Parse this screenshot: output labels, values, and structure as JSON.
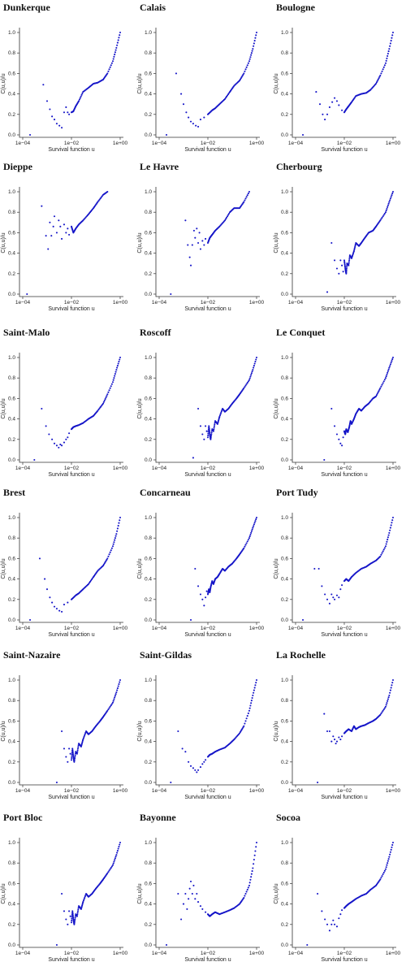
{
  "figure": {
    "background": "#ffffff",
    "marker_color": "#1515c8",
    "xlabel": "Survival function u",
    "ylabel": "C(u,u)/u",
    "x_ticks": [
      "1e−04",
      "1e−02",
      "1e+00"
    ],
    "y_ticks": [
      "0.0",
      "0.2",
      "0.4",
      "0.6",
      "0.8",
      "1.0"
    ],
    "x_scale": "log",
    "xlim": [
      0.0001,
      1
    ],
    "ylim": [
      0,
      1
    ]
  },
  "chart_data": [
    {
      "type": "scatter",
      "title": "Dunkerque",
      "xlabel": "Survival function u",
      "ylabel": "C(u,u)/u",
      "x_scale": "log",
      "xlim": [
        0.0001,
        1
      ],
      "ylim": [
        0,
        1
      ],
      "x": [
        0.0002,
        0.0007,
        0.001,
        0.0013,
        0.0016,
        0.002,
        0.0025,
        0.0032,
        0.004,
        0.005,
        0.006,
        0.007,
        0.008,
        0.01,
        0.012,
        0.015,
        0.02,
        0.03,
        0.05,
        0.08,
        0.12,
        0.2,
        0.3,
        0.5,
        0.7,
        1
      ],
      "y": [
        0.0,
        0.49,
        0.33,
        0.25,
        0.18,
        0.15,
        0.11,
        0.09,
        0.07,
        0.22,
        0.27,
        0.22,
        0.2,
        0.22,
        0.23,
        0.28,
        0.33,
        0.42,
        0.46,
        0.5,
        0.51,
        0.54,
        0.6,
        0.72,
        0.85,
        1.0
      ]
    },
    {
      "type": "scatter",
      "title": "Calais",
      "xlabel": "Survival function u",
      "ylabel": "C(u,u)/u",
      "x_scale": "log",
      "xlim": [
        0.0001,
        1
      ],
      "ylim": [
        0,
        1
      ],
      "x": [
        0.0002,
        0.0005,
        0.0008,
        0.001,
        0.0013,
        0.0016,
        0.002,
        0.0025,
        0.0032,
        0.004,
        0.005,
        0.007,
        0.01,
        0.015,
        0.02,
        0.03,
        0.05,
        0.08,
        0.12,
        0.2,
        0.3,
        0.5,
        0.7,
        1
      ],
      "y": [
        0.0,
        0.6,
        0.4,
        0.3,
        0.22,
        0.17,
        0.13,
        0.11,
        0.09,
        0.08,
        0.15,
        0.17,
        0.2,
        0.24,
        0.26,
        0.3,
        0.35,
        0.42,
        0.48,
        0.53,
        0.6,
        0.72,
        0.84,
        1.0
      ]
    },
    {
      "type": "scatter",
      "title": "Boulogne",
      "xlabel": "Survival function u",
      "ylabel": "C(u,u)/u",
      "x_scale": "log",
      "xlim": [
        0.0001,
        1
      ],
      "ylim": [
        0,
        1
      ],
      "x": [
        0.0002,
        0.0007,
        0.001,
        0.0013,
        0.0016,
        0.002,
        0.0025,
        0.0032,
        0.004,
        0.005,
        0.006,
        0.008,
        0.01,
        0.012,
        0.015,
        0.02,
        0.03,
        0.05,
        0.08,
        0.12,
        0.2,
        0.3,
        0.5,
        0.7,
        1
      ],
      "y": [
        0.0,
        0.42,
        0.3,
        0.2,
        0.15,
        0.2,
        0.27,
        0.32,
        0.36,
        0.33,
        0.29,
        0.24,
        0.22,
        0.25,
        0.28,
        0.32,
        0.38,
        0.4,
        0.41,
        0.44,
        0.5,
        0.58,
        0.7,
        0.84,
        1.0
      ]
    },
    {
      "type": "scatter",
      "title": "Dieppe",
      "xlabel": "Survival function u",
      "ylabel": "C(u,u)/u",
      "x_scale": "log",
      "xlim": [
        0.0001,
        1
      ],
      "ylim": [
        0,
        1
      ],
      "x": [
        0.00015,
        0.0006,
        0.0009,
        0.0011,
        0.0013,
        0.0015,
        0.0018,
        0.002,
        0.0025,
        0.003,
        0.0035,
        0.004,
        0.005,
        0.006,
        0.007,
        0.008,
        0.01,
        0.012,
        0.015,
        0.02,
        0.03,
        0.05,
        0.08,
        0.12,
        0.2,
        0.3
      ],
      "y": [
        0.0,
        0.86,
        0.57,
        0.44,
        0.7,
        0.57,
        0.66,
        0.76,
        0.6,
        0.72,
        0.66,
        0.54,
        0.68,
        0.6,
        0.64,
        0.58,
        0.66,
        0.6,
        0.64,
        0.68,
        0.72,
        0.78,
        0.84,
        0.9,
        0.97,
        1.0
      ]
    },
    {
      "type": "scatter",
      "title": "Le Havre",
      "xlabel": "Survival function u",
      "ylabel": "C(u,u)/u",
      "x_scale": "log",
      "xlim": [
        0.0001,
        1
      ],
      "ylim": [
        0,
        1
      ],
      "x": [
        0.0003,
        0.0012,
        0.0015,
        0.0018,
        0.002,
        0.0023,
        0.0027,
        0.003,
        0.0035,
        0.004,
        0.0045,
        0.005,
        0.006,
        0.007,
        0.008,
        0.01,
        0.012,
        0.015,
        0.02,
        0.03,
        0.05,
        0.08,
        0.12,
        0.2,
        0.3,
        0.5
      ],
      "y": [
        0.0,
        0.72,
        0.48,
        0.36,
        0.28,
        0.48,
        0.62,
        0.55,
        0.64,
        0.5,
        0.6,
        0.44,
        0.52,
        0.48,
        0.54,
        0.5,
        0.55,
        0.58,
        0.62,
        0.66,
        0.72,
        0.8,
        0.84,
        0.84,
        0.9,
        1.0
      ]
    },
    {
      "type": "scatter",
      "title": "Cherbourg",
      "xlabel": "Survival function u",
      "ylabel": "C(u,u)/u",
      "x_scale": "log",
      "xlim": [
        0.0001,
        1
      ],
      "ylim": [
        0,
        1
      ],
      "x": [
        0.002,
        0.003,
        0.004,
        0.005,
        0.006,
        0.007,
        0.008,
        0.009,
        0.01,
        0.011,
        0.012,
        0.013,
        0.015,
        0.017,
        0.02,
        0.025,
        0.03,
        0.04,
        0.05,
        0.07,
        0.1,
        0.15,
        0.2,
        0.3,
        0.5,
        0.7,
        1
      ],
      "y": [
        0.02,
        0.5,
        0.33,
        0.25,
        0.2,
        0.33,
        0.28,
        0.22,
        0.33,
        0.25,
        0.2,
        0.3,
        0.28,
        0.38,
        0.35,
        0.42,
        0.5,
        0.47,
        0.5,
        0.55,
        0.6,
        0.62,
        0.66,
        0.72,
        0.8,
        0.9,
        1.0
      ]
    },
    {
      "type": "scatter",
      "title": "Saint-Malo",
      "xlabel": "Survival function u",
      "ylabel": "C(u,u)/u",
      "x_scale": "log",
      "xlim": [
        0.0001,
        1
      ],
      "ylim": [
        0,
        1
      ],
      "x": [
        0.0003,
        0.0006,
        0.0009,
        0.0012,
        0.0016,
        0.002,
        0.0025,
        0.003,
        0.0035,
        0.004,
        0.005,
        0.006,
        0.007,
        0.008,
        0.01,
        0.012,
        0.015,
        0.02,
        0.03,
        0.05,
        0.08,
        0.12,
        0.2,
        0.3,
        0.5,
        0.7,
        1
      ],
      "y": [
        0.0,
        0.5,
        0.33,
        0.25,
        0.2,
        0.16,
        0.14,
        0.12,
        0.15,
        0.14,
        0.17,
        0.2,
        0.22,
        0.26,
        0.3,
        0.32,
        0.33,
        0.34,
        0.36,
        0.4,
        0.43,
        0.48,
        0.55,
        0.64,
        0.76,
        0.88,
        1.0
      ]
    },
    {
      "type": "scatter",
      "title": "Roscoff",
      "xlabel": "Survival function u",
      "ylabel": "C(u,u)/u",
      "x_scale": "log",
      "xlim": [
        0.0001,
        1
      ],
      "ylim": [
        0,
        1
      ],
      "x": [
        0.0025,
        0.004,
        0.005,
        0.006,
        0.007,
        0.008,
        0.009,
        0.01,
        0.011,
        0.012,
        0.013,
        0.015,
        0.017,
        0.02,
        0.025,
        0.03,
        0.04,
        0.05,
        0.07,
        0.1,
        0.15,
        0.2,
        0.3,
        0.5,
        0.7,
        1
      ],
      "y": [
        0.02,
        0.5,
        0.33,
        0.25,
        0.2,
        0.33,
        0.28,
        0.22,
        0.33,
        0.25,
        0.2,
        0.3,
        0.28,
        0.38,
        0.35,
        0.42,
        0.5,
        0.47,
        0.5,
        0.55,
        0.6,
        0.64,
        0.7,
        0.78,
        0.88,
        1.0
      ]
    },
    {
      "type": "scatter",
      "title": "Le Conquet",
      "xlabel": "Survival function u",
      "ylabel": "C(u,u)/u",
      "x_scale": "log",
      "xlim": [
        0.0001,
        1
      ],
      "ylim": [
        0,
        1
      ],
      "x": [
        0.0015,
        0.003,
        0.004,
        0.005,
        0.006,
        0.007,
        0.008,
        0.009,
        0.01,
        0.011,
        0.012,
        0.014,
        0.016,
        0.018,
        0.02,
        0.025,
        0.03,
        0.04,
        0.05,
        0.07,
        0.1,
        0.15,
        0.2,
        0.3,
        0.5,
        0.7,
        1
      ],
      "y": [
        0.0,
        0.5,
        0.33,
        0.25,
        0.2,
        0.16,
        0.14,
        0.22,
        0.28,
        0.25,
        0.3,
        0.27,
        0.32,
        0.38,
        0.35,
        0.4,
        0.45,
        0.5,
        0.48,
        0.52,
        0.55,
        0.6,
        0.62,
        0.7,
        0.8,
        0.9,
        1.0
      ]
    },
    {
      "type": "scatter",
      "title": "Brest",
      "xlabel": "Survival function u",
      "ylabel": "C(u,u)/u",
      "x_scale": "log",
      "xlim": [
        0.0001,
        1
      ],
      "ylim": [
        0,
        1
      ],
      "x": [
        0.0002,
        0.0005,
        0.0008,
        0.001,
        0.0013,
        0.0016,
        0.002,
        0.0025,
        0.0032,
        0.004,
        0.005,
        0.007,
        0.01,
        0.015,
        0.02,
        0.03,
        0.05,
        0.08,
        0.12,
        0.2,
        0.3,
        0.5,
        0.7,
        1
      ],
      "y": [
        0.0,
        0.6,
        0.4,
        0.3,
        0.22,
        0.17,
        0.13,
        0.11,
        0.09,
        0.08,
        0.15,
        0.17,
        0.2,
        0.24,
        0.26,
        0.3,
        0.35,
        0.42,
        0.48,
        0.53,
        0.6,
        0.72,
        0.84,
        1.0
      ]
    },
    {
      "type": "scatter",
      "title": "Concarneau",
      "xlabel": "Survival function u",
      "ylabel": "C(u,u)/u",
      "x_scale": "log",
      "xlim": [
        0.0001,
        1
      ],
      "ylim": [
        0,
        1
      ],
      "x": [
        0.002,
        0.003,
        0.004,
        0.005,
        0.006,
        0.007,
        0.008,
        0.009,
        0.01,
        0.011,
        0.012,
        0.013,
        0.015,
        0.017,
        0.02,
        0.025,
        0.03,
        0.04,
        0.05,
        0.07,
        0.1,
        0.15,
        0.2,
        0.3,
        0.5,
        0.7,
        1
      ],
      "y": [
        0.0,
        0.5,
        0.33,
        0.25,
        0.2,
        0.14,
        0.22,
        0.28,
        0.25,
        0.3,
        0.27,
        0.32,
        0.38,
        0.35,
        0.4,
        0.42,
        0.45,
        0.5,
        0.48,
        0.52,
        0.55,
        0.6,
        0.64,
        0.7,
        0.8,
        0.9,
        1.0
      ]
    },
    {
      "type": "scatter",
      "title": "Port Tudy",
      "xlabel": "Survival function u",
      "ylabel": "C(u,u)/u",
      "x_scale": "log",
      "xlim": [
        0.0001,
        1
      ],
      "ylim": [
        0,
        1
      ],
      "x": [
        0.0002,
        0.0006,
        0.0009,
        0.0012,
        0.0016,
        0.002,
        0.0025,
        0.003,
        0.0035,
        0.004,
        0.005,
        0.006,
        0.007,
        0.008,
        0.01,
        0.012,
        0.015,
        0.02,
        0.03,
        0.05,
        0.08,
        0.12,
        0.2,
        0.3,
        0.5,
        0.7,
        1
      ],
      "y": [
        0.0,
        0.5,
        0.5,
        0.33,
        0.25,
        0.2,
        0.16,
        0.25,
        0.22,
        0.2,
        0.24,
        0.22,
        0.3,
        0.34,
        0.38,
        0.4,
        0.38,
        0.42,
        0.46,
        0.5,
        0.52,
        0.55,
        0.58,
        0.62,
        0.72,
        0.85,
        1.0
      ]
    },
    {
      "type": "scatter",
      "title": "Saint-Nazaire",
      "xlabel": "Survival function u",
      "ylabel": "C(u,u)/u",
      "x_scale": "log",
      "xlim": [
        0.0001,
        1
      ],
      "ylim": [
        0,
        1
      ],
      "x": [
        0.0025,
        0.004,
        0.005,
        0.006,
        0.007,
        0.008,
        0.009,
        0.01,
        0.011,
        0.012,
        0.013,
        0.015,
        0.017,
        0.02,
        0.025,
        0.03,
        0.04,
        0.05,
        0.07,
        0.1,
        0.15,
        0.2,
        0.3,
        0.5,
        0.7,
        1
      ],
      "y": [
        0.0,
        0.5,
        0.33,
        0.25,
        0.2,
        0.33,
        0.28,
        0.22,
        0.33,
        0.25,
        0.2,
        0.3,
        0.28,
        0.38,
        0.35,
        0.42,
        0.5,
        0.47,
        0.5,
        0.55,
        0.6,
        0.64,
        0.7,
        0.78,
        0.88,
        1.0
      ]
    },
    {
      "type": "scatter",
      "title": "Saint-Gildas",
      "xlabel": "Survival function u",
      "ylabel": "C(u,u)/u",
      "x_scale": "log",
      "xlim": [
        0.0001,
        1
      ],
      "ylim": [
        0,
        1
      ],
      "x": [
        0.0003,
        0.0006,
        0.0009,
        0.0012,
        0.0016,
        0.002,
        0.0025,
        0.003,
        0.0035,
        0.004,
        0.005,
        0.006,
        0.007,
        0.008,
        0.01,
        0.012,
        0.015,
        0.02,
        0.03,
        0.05,
        0.08,
        0.12,
        0.2,
        0.3,
        0.5,
        0.7,
        1
      ],
      "y": [
        0.0,
        0.5,
        0.33,
        0.3,
        0.2,
        0.16,
        0.14,
        0.12,
        0.1,
        0.12,
        0.15,
        0.18,
        0.2,
        0.22,
        0.25,
        0.27,
        0.28,
        0.3,
        0.32,
        0.34,
        0.38,
        0.42,
        0.48,
        0.55,
        0.7,
        0.85,
        1.0
      ]
    },
    {
      "type": "scatter",
      "title": "La Rochelle",
      "xlabel": "Survival function u",
      "ylabel": "C(u,u)/u",
      "x_scale": "log",
      "xlim": [
        0.0001,
        1
      ],
      "ylim": [
        0,
        1
      ],
      "x": [
        0.0008,
        0.0015,
        0.002,
        0.0025,
        0.003,
        0.0035,
        0.004,
        0.0045,
        0.005,
        0.006,
        0.007,
        0.008,
        0.01,
        0.012,
        0.015,
        0.02,
        0.025,
        0.03,
        0.04,
        0.05,
        0.07,
        0.1,
        0.15,
        0.2,
        0.3,
        0.5,
        0.7,
        1
      ],
      "y": [
        0.0,
        0.67,
        0.5,
        0.5,
        0.4,
        0.45,
        0.42,
        0.38,
        0.4,
        0.44,
        0.42,
        0.45,
        0.48,
        0.5,
        0.52,
        0.5,
        0.55,
        0.52,
        0.54,
        0.55,
        0.56,
        0.58,
        0.6,
        0.62,
        0.66,
        0.74,
        0.85,
        1.0
      ]
    },
    {
      "type": "scatter",
      "title": "Port Bloc",
      "xlabel": "Survival function u",
      "ylabel": "C(u,u)/u",
      "x_scale": "log",
      "xlim": [
        0.0001,
        1
      ],
      "ylim": [
        0,
        1
      ],
      "x": [
        0.0025,
        0.004,
        0.005,
        0.006,
        0.007,
        0.008,
        0.009,
        0.01,
        0.011,
        0.012,
        0.013,
        0.015,
        0.017,
        0.02,
        0.025,
        0.03,
        0.04,
        0.05,
        0.07,
        0.1,
        0.15,
        0.2,
        0.3,
        0.5,
        0.7,
        1
      ],
      "y": [
        0.0,
        0.5,
        0.33,
        0.25,
        0.2,
        0.33,
        0.28,
        0.22,
        0.33,
        0.25,
        0.2,
        0.3,
        0.28,
        0.38,
        0.35,
        0.42,
        0.5,
        0.47,
        0.5,
        0.55,
        0.6,
        0.64,
        0.7,
        0.78,
        0.88,
        1.0
      ]
    },
    {
      "type": "scatter",
      "title": "Bayonne",
      "xlabel": "Survival function u",
      "ylabel": "C(u,u)/u",
      "x_scale": "log",
      "xlim": [
        0.0001,
        1
      ],
      "ylim": [
        0,
        1
      ],
      "x": [
        0.0002,
        0.0006,
        0.0008,
        0.001,
        0.0012,
        0.0014,
        0.0016,
        0.0018,
        0.002,
        0.0023,
        0.0026,
        0.003,
        0.0035,
        0.004,
        0.005,
        0.006,
        0.008,
        0.01,
        0.012,
        0.015,
        0.02,
        0.03,
        0.05,
        0.08,
        0.12,
        0.2,
        0.3,
        0.5,
        0.7,
        1
      ],
      "y": [
        0.0,
        0.5,
        0.25,
        0.4,
        0.5,
        0.35,
        0.45,
        0.55,
        0.62,
        0.5,
        0.58,
        0.45,
        0.5,
        0.42,
        0.38,
        0.35,
        0.32,
        0.3,
        0.28,
        0.3,
        0.32,
        0.3,
        0.32,
        0.34,
        0.36,
        0.4,
        0.46,
        0.58,
        0.75,
        1.0
      ]
    },
    {
      "type": "scatter",
      "title": "Socoa",
      "xlabel": "Survival function u",
      "ylabel": "C(u,u)/u",
      "x_scale": "log",
      "xlim": [
        0.0001,
        1
      ],
      "ylim": [
        0,
        1
      ],
      "x": [
        0.0003,
        0.0008,
        0.0012,
        0.0016,
        0.002,
        0.0025,
        0.003,
        0.0035,
        0.004,
        0.005,
        0.006,
        0.007,
        0.008,
        0.01,
        0.012,
        0.015,
        0.02,
        0.03,
        0.05,
        0.08,
        0.12,
        0.2,
        0.3,
        0.5,
        0.7,
        1
      ],
      "y": [
        0.0,
        0.5,
        0.33,
        0.25,
        0.2,
        0.14,
        0.2,
        0.24,
        0.2,
        0.18,
        0.26,
        0.3,
        0.34,
        0.36,
        0.38,
        0.4,
        0.42,
        0.45,
        0.48,
        0.5,
        0.54,
        0.58,
        0.64,
        0.74,
        0.86,
        1.0
      ]
    }
  ]
}
